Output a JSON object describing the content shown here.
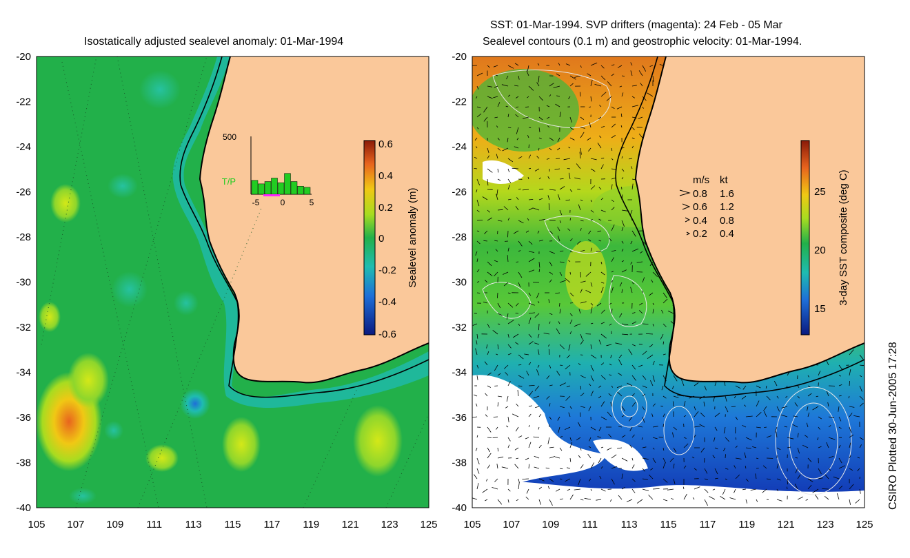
{
  "left_panel": {
    "title": "Isostatically adjusted sealevel anomaly: 01-Mar-1994",
    "colorbar": {
      "label": "Sealevel anomaly (m)",
      "ticks": [
        "0.6",
        "0.4",
        "0.2",
        "0",
        "-0.2",
        "-0.4",
        "-0.6"
      ]
    },
    "inset": {
      "ymax_label": "500",
      "series_label": "T/P",
      "x_ticks": [
        "-5",
        "0",
        "5"
      ],
      "bar_values": [
        120,
        90,
        110,
        140,
        100,
        180,
        110,
        70,
        60
      ]
    }
  },
  "right_panel": {
    "title_line1": "SST: 01-Mar-1994. SVP drifters (magenta): 24 Feb - 05 Mar",
    "title_line2": "Sealevel contours (0.1 m) and geostrophic velocity: 01-Mar-1994.",
    "colorbar": {
      "label": "3-day SST composite (deg C)",
      "ticks": [
        "25",
        "20",
        "15"
      ]
    },
    "legend": {
      "header_ms": "m/s",
      "header_kt": "kt",
      "rows": [
        {
          "ms": "0.8",
          "kt": "1.6"
        },
        {
          "ms": "0.6",
          "kt": "1.2"
        },
        {
          "ms": "0.4",
          "kt": "0.8"
        },
        {
          "ms": "0.2",
          "kt": "0.4"
        }
      ]
    }
  },
  "axes": {
    "lat_labels": [
      "-20",
      "-22",
      "-24",
      "-26",
      "-28",
      "-30",
      "-32",
      "-34",
      "-36",
      "-38",
      "-40"
    ],
    "lon_labels": [
      "105",
      "107",
      "109",
      "111",
      "113",
      "115",
      "117",
      "119",
      "121",
      "123",
      "125"
    ]
  },
  "credit": "CSIRO Plotted 30-Jun-2005 17:28",
  "colors": {
    "land": "#fac89a",
    "ocean_mid": "#22b04a",
    "anomaly_high": "#e8641e",
    "anomaly_low": "#1e7fd8",
    "sst_warm": "#c85a14",
    "sst_cold": "#1030b0"
  }
}
